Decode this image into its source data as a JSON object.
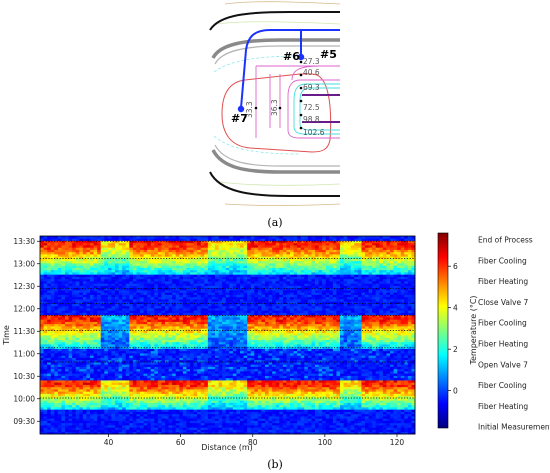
{
  "panel_a": {
    "label": "(a)",
    "locations": [
      {
        "id": "loc-5",
        "text": "#5"
      },
      {
        "id": "loc-6",
        "text": "#6"
      },
      {
        "id": "loc-7",
        "text": "#7"
      }
    ],
    "distance_marks": [
      "27.3",
      "40.6",
      "69.3",
      "72.5",
      "98.8",
      "102.6",
      "33.3",
      "36.3"
    ],
    "colors": {
      "fiber_pink": "#dd66cc",
      "fiber_red": "#e05050",
      "fiber_cyan": "#44dddd",
      "valve_blue": "#1a33ff",
      "wall_black": "#111111",
      "wall_gray": "#888888",
      "purple": "#6a1b8a"
    }
  },
  "panel_b": {
    "label": "(b)",
    "chart_data": {
      "type": "heatmap",
      "xlabel": "Distance (m)",
      "ylabel": "Time",
      "xlim": [
        21,
        125
      ],
      "x_ticks": [
        40,
        60,
        80,
        100,
        120
      ],
      "y_ticks": [
        "09:30",
        "10:00",
        "10:30",
        "11:00",
        "11:30",
        "12:00",
        "12:30",
        "13:00",
        "13:30"
      ],
      "y_tick_minutes": [
        570,
        600,
        630,
        660,
        690,
        720,
        750,
        780,
        810
      ],
      "ylim_minutes": [
        553,
        817
      ],
      "colorbar": {
        "label": "Temperature (°C)",
        "min": -1.8,
        "max": 7.6,
        "ticks": [
          0,
          2,
          4,
          6
        ],
        "colormap": "jet"
      },
      "event_minutes": [
        561,
        586,
        601,
        624,
        649,
        668,
        691,
        711,
        727,
        747,
        767,
        787,
        810
      ],
      "events": [
        "Initial Measurement",
        "Fiber Heating",
        "Fiber Cooling",
        "Open Valve 7",
        "Fiber Heating",
        "Fiber Cooling",
        "Close Valve 7",
        "Fiber Heating",
        "Fiber Cooling",
        "End of Process"
      ],
      "heating_periods_minutes": [
        [
          586,
          624
        ],
        [
          668,
          711
        ],
        [
          767,
          810
        ]
      ],
      "cold_zones_m": [
        [
          38,
          46
        ],
        [
          68,
          78
        ],
        [
          104,
          110
        ]
      ],
      "dotted_lines_minutes": [
        601,
        649,
        668,
        691,
        711,
        727,
        747,
        787,
        810
      ]
    }
  }
}
